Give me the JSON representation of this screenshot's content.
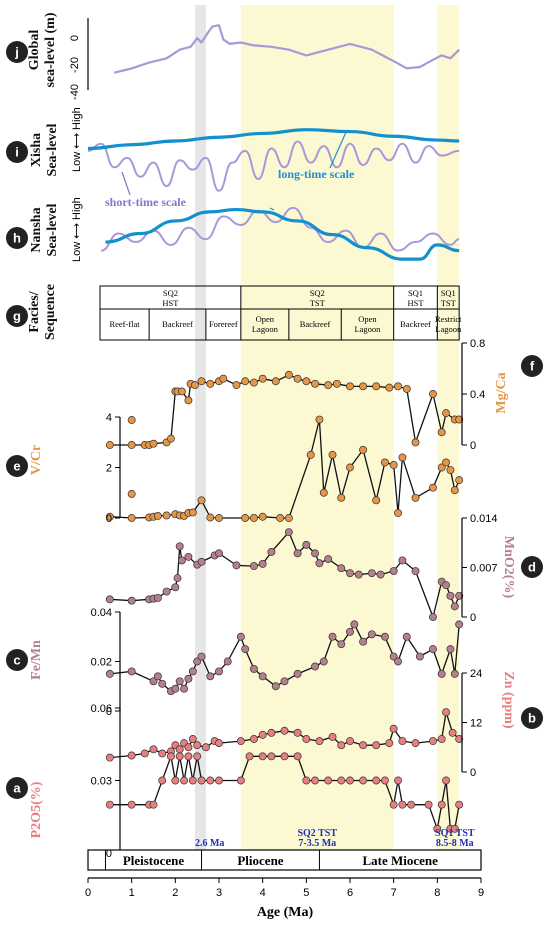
{
  "colors": {
    "highlight": "#fbf8d2",
    "grey_band": "#e6e6e6",
    "purple": "#a998d8",
    "blue": "#1391cf",
    "orange": "#e59646",
    "mauve": "#b57f8c",
    "salmon": "#e77f80",
    "annot_blue": "#1f2fb8",
    "label_purple": "#8c73c8",
    "label_blue": "#1f8fd0"
  },
  "panels": {
    "j": {
      "letter": "j",
      "ylabel": [
        "Global",
        "sea-level (m)"
      ],
      "ticks": [
        "0",
        "-20",
        "-40"
      ]
    },
    "i": {
      "letter": "i",
      "ylabel": [
        "Xisha",
        "Sea-level"
      ],
      "low_high": "Low ⟷ High"
    },
    "h": {
      "letter": "h",
      "ylabel": [
        "Nansha",
        "Sea-level"
      ],
      "low_high": "Low ⟷ High"
    },
    "g": {
      "letter": "g",
      "ylabel": [
        "Facies/",
        "Sequence"
      ]
    },
    "f": {
      "letter": "f",
      "ylabel": "Mg/Ca",
      "ticks": [
        "0.8",
        "0.4",
        "0"
      ]
    },
    "e": {
      "letter": "e",
      "ylabel": "V/Cr",
      "ticks": [
        "4",
        "2",
        "0"
      ]
    },
    "d": {
      "letter": "d",
      "ylabel": "MnO2(%)",
      "ticks": [
        "0.014",
        "0.007",
        "0"
      ]
    },
    "c": {
      "letter": "c",
      "ylabel": "Fe/Mn",
      "ticks": [
        "0.04",
        "0.02",
        "0"
      ]
    },
    "b": {
      "letter": "b",
      "ylabel": "Zn (ppm)",
      "ticks": [
        "24",
        "12",
        "0"
      ]
    },
    "a": {
      "letter": "a",
      "ylabel": "P2O5(%)",
      "ticks": [
        "0.06",
        "0.03",
        "0"
      ]
    }
  },
  "annotations": {
    "long_time": "long-time scale",
    "short_time": "short-time scale",
    "marker_26": "2.6 Ma",
    "sq2_tst": [
      "SQ2 TST",
      "7-3.5 Ma"
    ],
    "sq1_tst": [
      "SQ1 TST",
      "8.5-8 Ma"
    ]
  },
  "facies": {
    "sequences": [
      {
        "label": [
          "SQ2",
          "HST"
        ]
      },
      {
        "label": [
          "SQ2",
          "TST"
        ]
      },
      {
        "label": [
          "SQ1",
          "HST"
        ]
      },
      {
        "label": [
          "SQ1",
          "TST"
        ]
      }
    ],
    "facies": [
      {
        "label": [
          "Reef-flat"
        ]
      },
      {
        "label": [
          "Backreef"
        ]
      },
      {
        "label": [
          "Forereef"
        ]
      },
      {
        "label": [
          "Open",
          "Lagoon"
        ]
      },
      {
        "label": [
          "Backreef"
        ]
      },
      {
        "label": [
          "Open",
          "Lagoon"
        ]
      },
      {
        "label": [
          "Backreef"
        ]
      },
      {
        "label": [
          "Restrict",
          "Lagoon"
        ]
      }
    ]
  },
  "epochs": [
    "Pleistocene",
    "Pliocene",
    "Late Miocene"
  ],
  "xaxis": {
    "label": "Age (Ma)",
    "ticks": [
      "0",
      "1",
      "2",
      "3",
      "4",
      "5",
      "6",
      "7",
      "8",
      "9"
    ]
  },
  "chart_data": {
    "type": "line",
    "x_range": [
      0,
      9
    ],
    "xlabel": "Age (Ma)",
    "grey_band_ma": [
      2.45,
      2.7
    ],
    "highlight_bands_ma": [
      [
        3.5,
        7.0
      ],
      [
        8.0,
        8.5
      ]
    ],
    "global_sea_level": {
      "ylabel": "Global sea-level (m)",
      "ylim": [
        -40,
        10
      ],
      "x": [
        0.6,
        1.0,
        1.4,
        1.8,
        2.1,
        2.35,
        2.5,
        2.6,
        2.75,
        2.85,
        3.0,
        3.1,
        3.25,
        3.5,
        3.8,
        4.2,
        4.6,
        5.0,
        5.5,
        6.0,
        6.5,
        7.0,
        7.3,
        7.6,
        7.9,
        8.1,
        8.3,
        8.5
      ],
      "y": [
        -28,
        -25,
        -21,
        -18,
        -12,
        -10,
        -4,
        -7,
        0,
        4,
        5,
        -5,
        -8,
        -7,
        -9,
        -10,
        -12,
        -16,
        -12,
        -8,
        -12,
        -20,
        -25,
        -24,
        -19,
        -16,
        -18,
        -12
      ]
    },
    "xisha_short": {
      "x": [
        0.0,
        0.3,
        0.6,
        0.9,
        1.2,
        1.5,
        1.8,
        2.1,
        2.4,
        2.7,
        3.0,
        3.3,
        3.6,
        3.9,
        4.2,
        4.5,
        4.8,
        5.1,
        5.4,
        5.7,
        6.0,
        6.3,
        6.6,
        6.9,
        7.2,
        7.5,
        7.8,
        8.1,
        8.5
      ],
      "y": [
        0.45,
        0.6,
        0.1,
        0.3,
        -0.1,
        0.2,
        -0.3,
        0.25,
        0.05,
        0.3,
        -0.4,
        0.2,
        0.45,
        -0.15,
        0.5,
        0.1,
        0.65,
        0.2,
        0.55,
        0.1,
        0.6,
        0.15,
        0.5,
        0.25,
        0.6,
        0.2,
        0.55,
        0.35,
        0.45
      ]
    },
    "xisha_long": {
      "x": [
        0.0,
        1.0,
        2.0,
        3.0,
        4.0,
        5.0,
        6.0,
        7.0,
        8.0,
        8.5
      ],
      "y": [
        0.5,
        0.58,
        0.66,
        0.74,
        0.82,
        0.9,
        0.86,
        0.76,
        0.68,
        0.66
      ]
    },
    "nansha_short": {
      "x": [
        0.3,
        0.7,
        1.1,
        1.5,
        1.9,
        2.3,
        2.7,
        3.1,
        3.5,
        3.9,
        4.3,
        4.7,
        5.1,
        5.5,
        5.9,
        6.3,
        6.7,
        7.1,
        7.5,
        7.9,
        8.3,
        8.5
      ],
      "y": [
        0.2,
        0.5,
        0.35,
        0.55,
        0.3,
        0.6,
        0.4,
        0.8,
        0.65,
        0.9,
        0.7,
        0.95,
        0.6,
        0.35,
        0.55,
        0.25,
        0.5,
        0.2,
        0.35,
        0.5,
        0.3,
        0.4
      ]
    },
    "nansha_long": {
      "x": [
        0.4,
        1.2,
        2.0,
        2.8,
        3.4,
        4.0,
        4.8,
        5.6,
        6.4,
        7.2,
        7.6,
        8.0,
        8.5
      ],
      "y": [
        0.35,
        0.5,
        0.72,
        0.88,
        0.92,
        0.88,
        0.72,
        0.48,
        0.25,
        0.05,
        0.05,
        0.3,
        0.2
      ]
    },
    "mg_ca": {
      "ylabel": "Mg/Ca",
      "ylim": [
        0,
        0.8
      ],
      "x": [
        0.5,
        1.0,
        1.3,
        1.4,
        1.5,
        1.8,
        1.9,
        2.0,
        2.05,
        2.15,
        2.3,
        2.35,
        2.45,
        2.6,
        2.8,
        3.0,
        3.1,
        3.4,
        3.6,
        3.8,
        4.0,
        4.3,
        4.6,
        4.8,
        5.0,
        5.2,
        5.5,
        5.7,
        6.0,
        6.3,
        6.6,
        6.9,
        7.1,
        7.3,
        7.5,
        7.9,
        8.1,
        8.2,
        8.4,
        8.5
      ],
      "y": [
        0.0,
        0.0,
        0.0,
        0.0,
        0.01,
        0.02,
        0.05,
        0.42,
        0.42,
        0.42,
        0.35,
        0.48,
        0.47,
        0.5,
        0.48,
        0.5,
        0.52,
        0.47,
        0.5,
        0.49,
        0.52,
        0.5,
        0.55,
        0.52,
        0.5,
        0.48,
        0.47,
        0.48,
        0.46,
        0.46,
        0.46,
        0.45,
        0.46,
        0.44,
        0.02,
        0.4,
        0.1,
        0.25,
        0.2,
        0.2
      ]
    },
    "v_cr": {
      "ylabel": "V/Cr",
      "ylim": [
        0,
        4
      ],
      "x": [
        0.5,
        1.0,
        1.4,
        1.5,
        1.6,
        1.8,
        2.0,
        2.1,
        2.2,
        2.3,
        2.4,
        2.6,
        2.8,
        3.0,
        3.6,
        3.8,
        4.0,
        4.4,
        4.6,
        5.1,
        5.3,
        5.4,
        5.6,
        5.8,
        6.0,
        6.3,
        6.6,
        6.8,
        7.0,
        7.1,
        7.2,
        7.5,
        7.9,
        8.1,
        8.2,
        8.3,
        8.4,
        8.5
      ],
      "y": [
        0.05,
        0.0,
        0.02,
        0.05,
        0.08,
        0.1,
        0.15,
        0.1,
        0.08,
        0.2,
        0.22,
        0.7,
        0.02,
        0.0,
        0.0,
        0.0,
        0.05,
        0.0,
        0.0,
        2.5,
        3.9,
        1.0,
        2.5,
        0.8,
        2.0,
        2.7,
        0.7,
        2.2,
        2.1,
        0.2,
        2.4,
        0.8,
        1.2,
        2.0,
        2.2,
        1.9,
        1.1,
        1.5
      ]
    },
    "mno2": {
      "ylabel": "MnO2 (%)",
      "ylim": [
        0,
        0.014
      ],
      "x": [
        0.5,
        1.0,
        1.4,
        1.5,
        1.6,
        1.8,
        2.0,
        2.05,
        2.1,
        2.15,
        2.3,
        2.5,
        2.6,
        2.9,
        3.0,
        3.4,
        3.8,
        4.0,
        4.2,
        4.6,
        4.8,
        5.0,
        5.2,
        5.3,
        5.5,
        5.8,
        6.0,
        6.2,
        6.5,
        6.7,
        7.0,
        7.2,
        7.5,
        7.9,
        8.1,
        8.2,
        8.3,
        8.4,
        8.5
      ],
      "y": [
        0.0025,
        0.0023,
        0.0025,
        0.0026,
        0.0027,
        0.0036,
        0.0042,
        0.0055,
        0.01,
        0.008,
        0.0085,
        0.0074,
        0.0078,
        0.0087,
        0.009,
        0.0073,
        0.0072,
        0.0075,
        0.0092,
        0.012,
        0.009,
        0.0102,
        0.009,
        0.0076,
        0.0082,
        0.0069,
        0.0062,
        0.006,
        0.0062,
        0.006,
        0.0065,
        0.008,
        0.0065,
        0.0,
        0.005,
        0.0045,
        0.003,
        0.0015,
        0.003
      ]
    },
    "fe_mn": {
      "ylabel": "Fe/Mn",
      "ylim": [
        0,
        0.04
      ],
      "x": [
        0.5,
        1.0,
        1.5,
        1.6,
        1.7,
        1.9,
        2.0,
        2.1,
        2.2,
        2.3,
        2.4,
        2.5,
        2.6,
        2.8,
        3.0,
        3.2,
        3.5,
        3.6,
        3.8,
        4.0,
        4.3,
        4.5,
        4.8,
        5.2,
        5.4,
        5.6,
        5.8,
        6.0,
        6.1,
        6.3,
        6.5,
        6.8,
        7.0,
        7.1,
        7.3,
        7.6,
        7.9,
        8.1,
        8.3,
        8.4,
        8.5
      ],
      "y": [
        0.015,
        0.016,
        0.012,
        0.014,
        0.011,
        0.008,
        0.009,
        0.012,
        0.009,
        0.013,
        0.016,
        0.02,
        0.022,
        0.014,
        0.016,
        0.02,
        0.03,
        0.025,
        0.017,
        0.014,
        0.01,
        0.012,
        0.015,
        0.018,
        0.02,
        0.03,
        0.027,
        0.032,
        0.035,
        0.028,
        0.031,
        0.03,
        0.022,
        0.02,
        0.03,
        0.022,
        0.025,
        0.015,
        0.025,
        0.015,
        0.035
      ]
    },
    "zn": {
      "ylabel": "Zn (ppm)",
      "ylim": [
        0,
        24
      ],
      "x": [
        0.5,
        1.0,
        1.3,
        1.5,
        1.7,
        1.9,
        2.0,
        2.1,
        2.2,
        2.3,
        2.4,
        2.5,
        2.7,
        2.9,
        3.0,
        3.5,
        3.8,
        4.0,
        4.2,
        4.5,
        4.8,
        5.0,
        5.3,
        5.6,
        5.8,
        6.0,
        6.3,
        6.6,
        6.9,
        7.0,
        7.2,
        7.5,
        7.9,
        8.1,
        8.2,
        8.35,
        8.5
      ],
      "y": [
        3.5,
        4.0,
        4.5,
        5.5,
        4.5,
        5.0,
        6.5,
        5.5,
        7.0,
        6.0,
        8.0,
        6.5,
        6.0,
        7.5,
        7.0,
        7.5,
        8.0,
        9.0,
        9.5,
        10.0,
        9.5,
        8.0,
        7.5,
        8.5,
        6.5,
        7.5,
        6.5,
        6.5,
        7.0,
        10.5,
        7.5,
        7.0,
        7.5,
        8.0,
        14.5,
        9.5,
        8.0
      ]
    },
    "p2o5": {
      "ylabel": "P2O5 (%)",
      "ylim": [
        0,
        0.06
      ],
      "x": [
        0.5,
        1.0,
        1.4,
        1.5,
        1.7,
        1.9,
        2.0,
        2.1,
        2.2,
        2.3,
        2.4,
        2.5,
        2.6,
        2.8,
        3.0,
        3.5,
        3.7,
        4.0,
        4.2,
        4.5,
        4.8,
        5.0,
        5.2,
        5.5,
        5.8,
        6.0,
        6.3,
        6.6,
        6.8,
        7.0,
        7.1,
        7.2,
        7.4,
        7.8,
        8.0,
        8.1,
        8.2,
        8.3,
        8.4,
        8.5
      ],
      "y": [
        0.02,
        0.02,
        0.02,
        0.02,
        0.03,
        0.04,
        0.03,
        0.04,
        0.03,
        0.04,
        0.03,
        0.04,
        0.03,
        0.03,
        0.03,
        0.03,
        0.04,
        0.04,
        0.04,
        0.04,
        0.04,
        0.03,
        0.03,
        0.03,
        0.03,
        0.03,
        0.03,
        0.03,
        0.03,
        0.02,
        0.03,
        0.02,
        0.02,
        0.02,
        0.01,
        0.02,
        0.03,
        0.01,
        0.01,
        0.02
      ]
    }
  }
}
